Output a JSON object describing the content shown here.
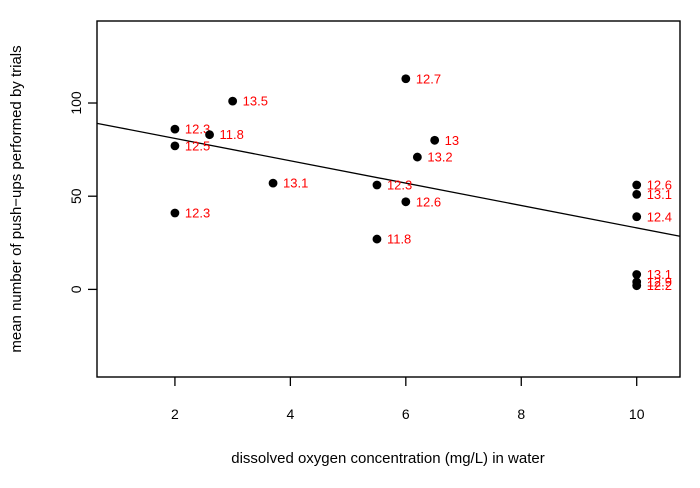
{
  "figure": {
    "background": "#ffffff",
    "axis_color": "#000000",
    "point_color": "#000000",
    "point_label_color": "#ff0000",
    "line_color": "#000000"
  },
  "chart_data": {
    "type": "scatter",
    "title": "",
    "xlabel": "dissolved oxygen concentration (mg/L) in water",
    "ylabel": "mean number of push−ups performed by trials",
    "xlim": [
      0.65,
      10.75
    ],
    "ylim": [
      -47,
      144
    ],
    "x_ticks": [
      2,
      4,
      6,
      8,
      10
    ],
    "y_ticks": [
      0,
      50,
      100
    ],
    "grid": false,
    "legend": null,
    "points": [
      {
        "x": 2.0,
        "y": 86,
        "label": "12.3"
      },
      {
        "x": 2.0,
        "y": 77,
        "label": "12.5"
      },
      {
        "x": 2.0,
        "y": 41,
        "label": "12.3"
      },
      {
        "x": 2.6,
        "y": 83,
        "label": "11.8"
      },
      {
        "x": 3.0,
        "y": 101,
        "label": "13.5"
      },
      {
        "x": 3.7,
        "y": 57,
        "label": "13.1"
      },
      {
        "x": 5.5,
        "y": 56,
        "label": "12.3"
      },
      {
        "x": 5.5,
        "y": 27,
        "label": "11.8"
      },
      {
        "x": 6.0,
        "y": 113,
        "label": "12.7"
      },
      {
        "x": 6.0,
        "y": 47,
        "label": "12.6"
      },
      {
        "x": 6.2,
        "y": 71,
        "label": "13.2"
      },
      {
        "x": 6.5,
        "y": 80,
        "label": "13"
      },
      {
        "x": 10.0,
        "y": 56,
        "label": "12.6"
      },
      {
        "x": 10.0,
        "y": 51,
        "label": "13.1"
      },
      {
        "x": 10.0,
        "y": 39,
        "label": "12.4"
      },
      {
        "x": 10.0,
        "y": 8,
        "label": "13.1"
      },
      {
        "x": 10.0,
        "y": 4,
        "label": "12.9"
      },
      {
        "x": 10.0,
        "y": 2,
        "label": "12.2"
      }
    ],
    "regression_line": {
      "intercept": 93,
      "slope": -6
    }
  }
}
